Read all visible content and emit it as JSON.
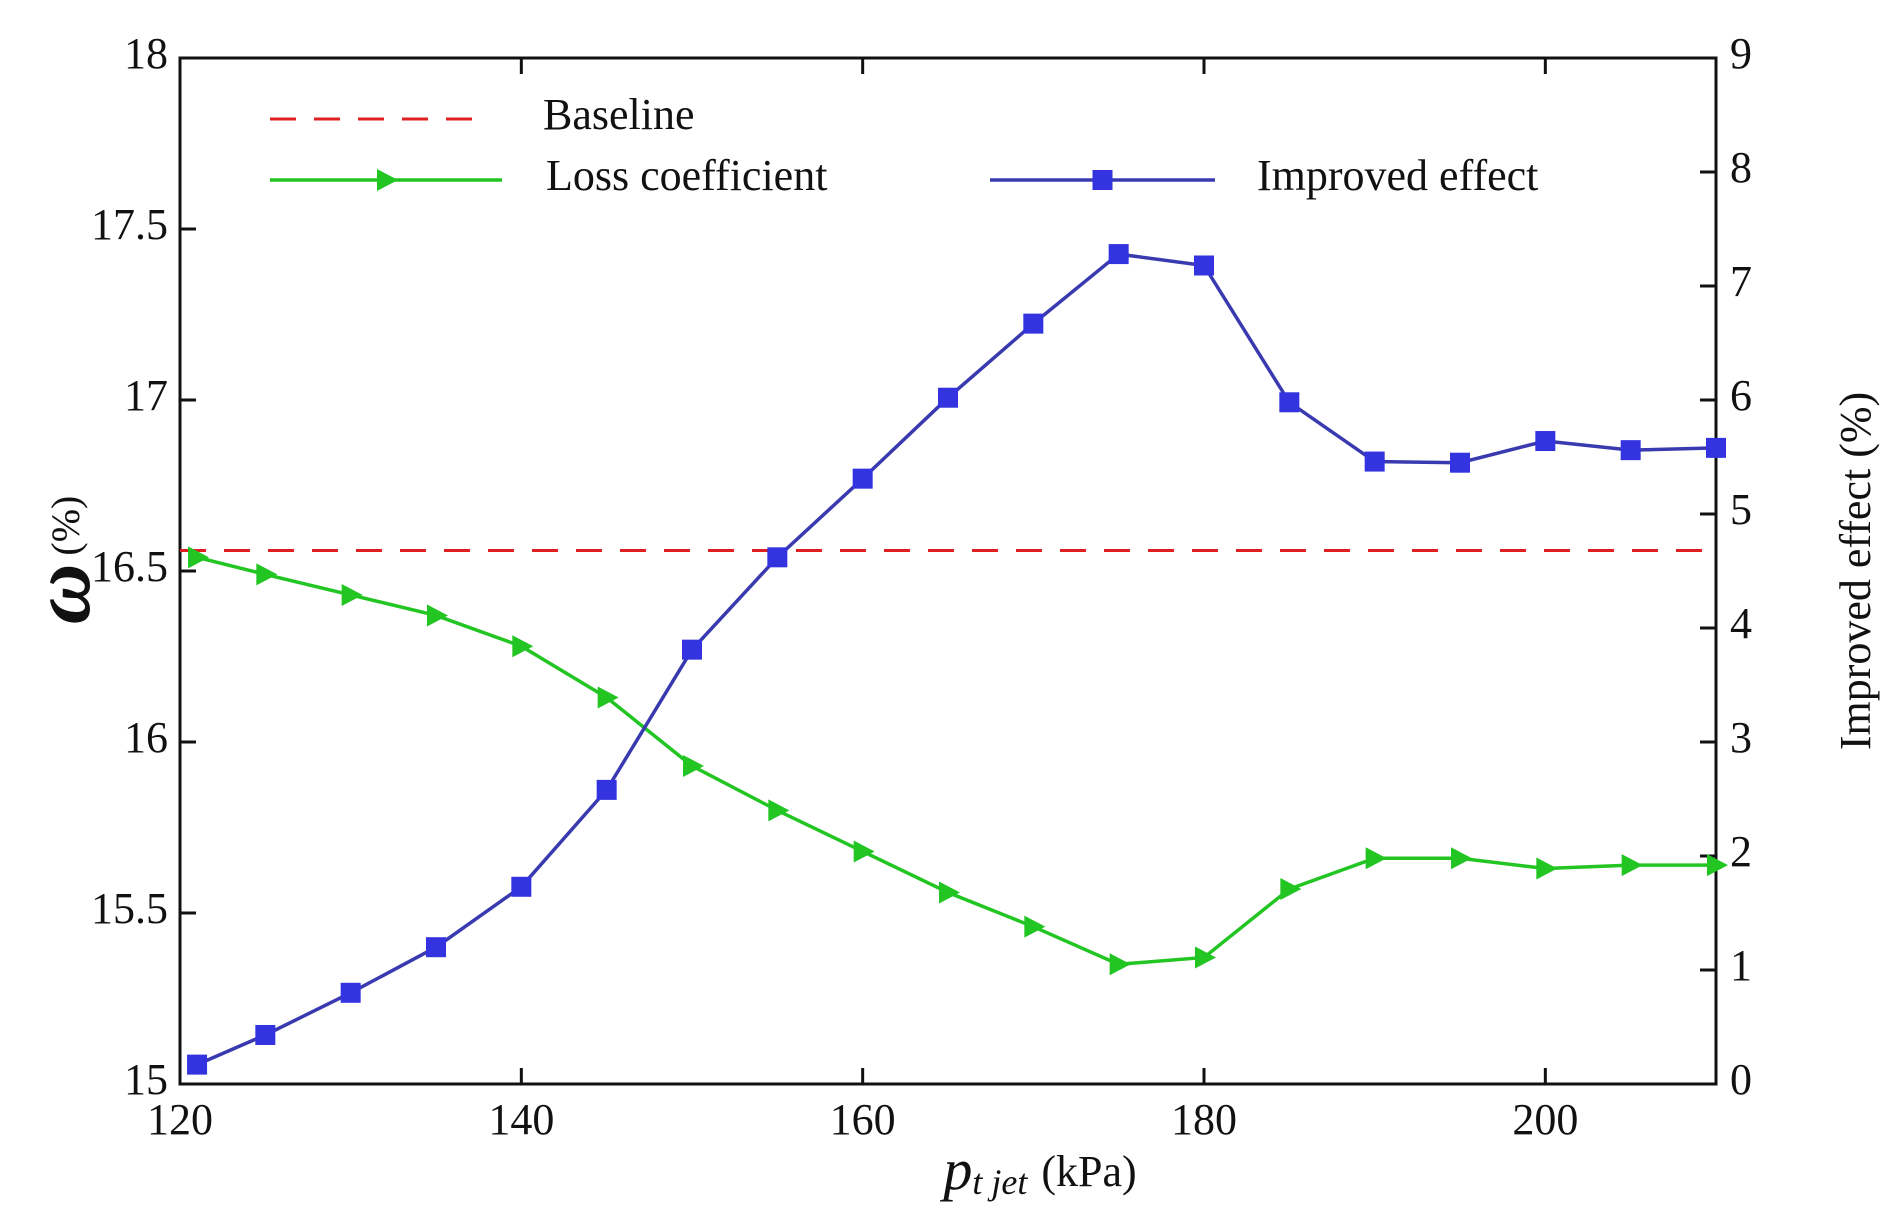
{
  "chart_data": {
    "type": "line",
    "x": [
      121,
      125,
      130,
      135,
      140,
      145,
      150,
      155,
      160,
      165,
      170,
      175,
      180,
      185,
      190,
      195,
      200,
      205,
      210
    ],
    "series": [
      {
        "name": "Loss coefficient",
        "color": "#22c522",
        "marker": "triangle-right",
        "axis": "y",
        "values": [
          16.54,
          16.49,
          16.43,
          16.37,
          16.28,
          16.13,
          15.93,
          15.8,
          15.68,
          15.56,
          15.46,
          15.35,
          15.37,
          15.57,
          15.66,
          15.66,
          15.63,
          15.64,
          15.64
        ]
      },
      {
        "name": "Improved effect",
        "color": "#3a3ab0",
        "marker_color": "#3333e0",
        "marker": "square",
        "axis": "y2",
        "values": [
          0.17,
          0.43,
          0.8,
          1.2,
          1.73,
          2.58,
          3.81,
          4.62,
          5.31,
          6.02,
          6.67,
          7.28,
          7.18,
          5.98,
          5.46,
          5.45,
          5.64,
          5.56,
          5.58
        ]
      }
    ],
    "baseline": {
      "name": "Baseline",
      "value": 16.56,
      "color": "#e02020"
    },
    "xlim": [
      120,
      210
    ],
    "xticks": [
      120,
      140,
      160,
      180,
      200
    ],
    "ylim": [
      15,
      18
    ],
    "yticks": [
      15,
      15.5,
      16,
      16.5,
      17,
      17.5,
      18
    ],
    "y2lim": [
      0,
      9
    ],
    "y2ticks": [
      0,
      1,
      2,
      3,
      4,
      5,
      6,
      7,
      8,
      9
    ],
    "xlabel": {
      "symbol": "p",
      "subscript": "t jet",
      "unit": "(kPa)"
    },
    "ylabel": {
      "symbol": "ω",
      "unit": "(%)"
    },
    "y2label": "Improved effect (%)"
  }
}
